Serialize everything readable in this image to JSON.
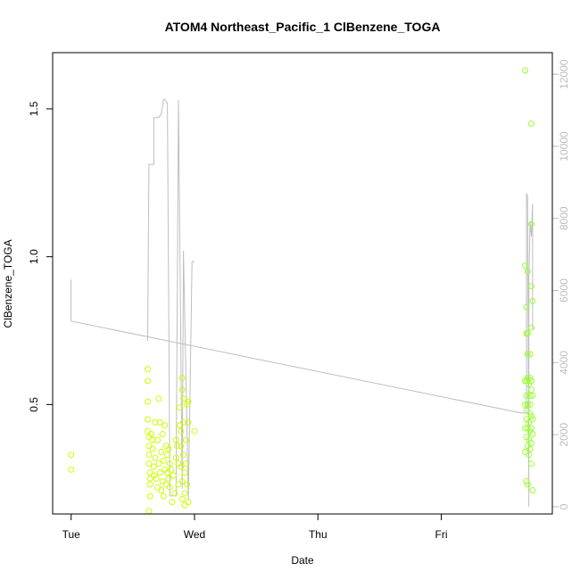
{
  "chart_data": {
    "type": "scatter",
    "title": "ATOM4 Northeast_Pacific_1 ClBenzene_TOGA",
    "xlabel": "Date",
    "ylabel": "ClBenzene_TOGA",
    "x_ticks": [
      {
        "label": "Tue",
        "day": 0
      },
      {
        "label": "Wed",
        "day": 1
      },
      {
        "label": "Thu",
        "day": 2
      },
      {
        "label": "Fri",
        "day": 3
      }
    ],
    "xlim_days": [
      -0.15,
      3.9
    ],
    "ylim": [
      0.13,
      1.69
    ],
    "y_ticks": [
      "0.5",
      "1.0",
      "1.5"
    ],
    "y2lim": [
      -200,
      12600
    ],
    "y2_ticks": [
      "0",
      "2000",
      "4000",
      "6000",
      "8000",
      "10000",
      "12000"
    ],
    "grid": false,
    "colors": {
      "points": [
        "#ccff00",
        "#99ff33"
      ],
      "secondary_line": "#bebebe",
      "secondary_axis": "#bdbdbd"
    },
    "points": [
      {
        "x": 0.0,
        "y": 0.33
      },
      {
        "x": 0.0,
        "y": 0.28
      },
      {
        "x": 0.62,
        "y": 0.62
      },
      {
        "x": 0.62,
        "y": 0.58
      },
      {
        "x": 0.62,
        "y": 0.51
      },
      {
        "x": 0.62,
        "y": 0.45
      },
      {
        "x": 0.62,
        "y": 0.41
      },
      {
        "x": 0.63,
        "y": 0.39
      },
      {
        "x": 0.63,
        "y": 0.36
      },
      {
        "x": 0.63,
        "y": 0.33
      },
      {
        "x": 0.63,
        "y": 0.3
      },
      {
        "x": 0.64,
        "y": 0.27
      },
      {
        "x": 0.64,
        "y": 0.25
      },
      {
        "x": 0.64,
        "y": 0.23
      },
      {
        "x": 0.64,
        "y": 0.19
      },
      {
        "x": 0.63,
        "y": 0.14
      },
      {
        "x": 0.65,
        "y": 0.4
      },
      {
        "x": 0.66,
        "y": 0.38
      },
      {
        "x": 0.66,
        "y": 0.35
      },
      {
        "x": 0.67,
        "y": 0.29
      },
      {
        "x": 0.67,
        "y": 0.26
      },
      {
        "x": 0.68,
        "y": 0.44
      },
      {
        "x": 0.68,
        "y": 0.32
      },
      {
        "x": 0.69,
        "y": 0.25
      },
      {
        "x": 0.7,
        "y": 0.22
      },
      {
        "x": 0.7,
        "y": 0.38
      },
      {
        "x": 0.71,
        "y": 0.3
      },
      {
        "x": 0.71,
        "y": 0.52
      },
      {
        "x": 0.72,
        "y": 0.44
      },
      {
        "x": 0.72,
        "y": 0.27
      },
      {
        "x": 0.73,
        "y": 0.21
      },
      {
        "x": 0.73,
        "y": 0.34
      },
      {
        "x": 0.74,
        "y": 0.4
      },
      {
        "x": 0.74,
        "y": 0.24
      },
      {
        "x": 0.75,
        "y": 0.31
      },
      {
        "x": 0.75,
        "y": 0.19
      },
      {
        "x": 0.76,
        "y": 0.43
      },
      {
        "x": 0.76,
        "y": 0.28
      },
      {
        "x": 0.77,
        "y": 0.36
      },
      {
        "x": 0.77,
        "y": 0.23
      },
      {
        "x": 0.78,
        "y": 0.33
      },
      {
        "x": 0.78,
        "y": 0.27
      },
      {
        "x": 0.79,
        "y": 0.25
      },
      {
        "x": 0.79,
        "y": 0.35
      },
      {
        "x": 0.8,
        "y": 0.3
      },
      {
        "x": 0.8,
        "y": 0.22
      },
      {
        "x": 0.81,
        "y": 0.28
      },
      {
        "x": 0.82,
        "y": 0.17
      },
      {
        "x": 0.83,
        "y": 0.26
      },
      {
        "x": 0.84,
        "y": 0.2
      },
      {
        "x": 0.85,
        "y": 0.38
      },
      {
        "x": 0.85,
        "y": 0.32
      },
      {
        "x": 0.86,
        "y": 0.36
      },
      {
        "x": 0.87,
        "y": 0.3
      },
      {
        "x": 0.87,
        "y": 0.23
      },
      {
        "x": 0.88,
        "y": 0.49
      },
      {
        "x": 0.88,
        "y": 0.43
      },
      {
        "x": 0.89,
        "y": 0.41
      },
      {
        "x": 0.89,
        "y": 0.36
      },
      {
        "x": 0.89,
        "y": 0.29
      },
      {
        "x": 0.9,
        "y": 0.24
      },
      {
        "x": 0.9,
        "y": 0.18
      },
      {
        "x": 0.9,
        "y": 0.59
      },
      {
        "x": 0.9,
        "y": 0.55
      },
      {
        "x": 0.91,
        "y": 0.52
      },
      {
        "x": 0.91,
        "y": 0.44
      },
      {
        "x": 0.91,
        "y": 0.33
      },
      {
        "x": 0.92,
        "y": 0.27
      },
      {
        "x": 0.92,
        "y": 0.2
      },
      {
        "x": 0.92,
        "y": 0.16
      },
      {
        "x": 0.93,
        "y": 0.38
      },
      {
        "x": 0.93,
        "y": 0.3
      },
      {
        "x": 0.94,
        "y": 0.23
      },
      {
        "x": 0.94,
        "y": 0.5
      },
      {
        "x": 0.95,
        "y": 0.44
      },
      {
        "x": 0.95,
        "y": 0.51
      },
      {
        "x": 0.95,
        "y": 0.17
      },
      {
        "x": 1.0,
        "y": 0.41
      },
      {
        "x": 3.68,
        "y": 1.63
      },
      {
        "x": 3.73,
        "y": 1.45
      },
      {
        "x": 3.73,
        "y": 1.11
      },
      {
        "x": 3.68,
        "y": 0.97
      },
      {
        "x": 3.7,
        "y": 0.95
      },
      {
        "x": 3.73,
        "y": 0.9
      },
      {
        "x": 3.69,
        "y": 0.83
      },
      {
        "x": 3.74,
        "y": 0.85
      },
      {
        "x": 3.73,
        "y": 0.76
      },
      {
        "x": 3.7,
        "y": 0.74
      },
      {
        "x": 3.69,
        "y": 0.74
      },
      {
        "x": 3.7,
        "y": 0.67
      },
      {
        "x": 3.72,
        "y": 0.67
      },
      {
        "x": 3.68,
        "y": 0.58
      },
      {
        "x": 3.69,
        "y": 0.58
      },
      {
        "x": 3.7,
        "y": 0.59
      },
      {
        "x": 3.71,
        "y": 0.57
      },
      {
        "x": 3.72,
        "y": 0.59
      },
      {
        "x": 3.73,
        "y": 0.58
      },
      {
        "x": 3.73,
        "y": 0.55
      },
      {
        "x": 3.69,
        "y": 0.53
      },
      {
        "x": 3.72,
        "y": 0.53
      },
      {
        "x": 3.74,
        "y": 0.53
      },
      {
        "x": 3.68,
        "y": 0.5
      },
      {
        "x": 3.7,
        "y": 0.5
      },
      {
        "x": 3.72,
        "y": 0.5
      },
      {
        "x": 3.69,
        "y": 0.48
      },
      {
        "x": 3.72,
        "y": 0.47
      },
      {
        "x": 3.73,
        "y": 0.46
      },
      {
        "x": 3.69,
        "y": 0.45
      },
      {
        "x": 3.71,
        "y": 0.44
      },
      {
        "x": 3.74,
        "y": 0.45
      },
      {
        "x": 3.68,
        "y": 0.42
      },
      {
        "x": 3.7,
        "y": 0.42
      },
      {
        "x": 3.72,
        "y": 0.41
      },
      {
        "x": 3.73,
        "y": 0.42
      },
      {
        "x": 3.74,
        "y": 0.4
      },
      {
        "x": 3.69,
        "y": 0.39
      },
      {
        "x": 3.71,
        "y": 0.38
      },
      {
        "x": 3.73,
        "y": 0.37
      },
      {
        "x": 3.7,
        "y": 0.36
      },
      {
        "x": 3.72,
        "y": 0.35
      },
      {
        "x": 3.68,
        "y": 0.34
      },
      {
        "x": 3.71,
        "y": 0.33
      },
      {
        "x": 3.73,
        "y": 0.3
      },
      {
        "x": 3.69,
        "y": 0.24
      },
      {
        "x": 3.7,
        "y": 0.23
      },
      {
        "x": 3.74,
        "y": 0.21
      }
    ],
    "secondary_line": [
      {
        "x": 0.0,
        "y2": 6300
      },
      {
        "x": 0.0,
        "y2": 5150
      },
      {
        "x": 3.65,
        "y2": 2600
      },
      {
        "x": 3.69,
        "y2": 2600
      },
      {
        "x": 3.69,
        "y2": 8700
      },
      {
        "x": 3.7,
        "y2": 8600
      },
      {
        "x": 3.71,
        "y2": 0
      },
      {
        "x": 3.71,
        "y2": 6300
      },
      {
        "x": 3.72,
        "y2": 7900
      },
      {
        "x": 3.73,
        "y2": 7500
      },
      {
        "x": 3.74,
        "y2": 8400
      },
      {
        "x": 3.74,
        "y2": 4900
      }
    ],
    "secondary_line_2": [
      {
        "x": 0.62,
        "y2": 4600
      },
      {
        "x": 0.63,
        "y2": 9500
      },
      {
        "x": 0.67,
        "y2": 9500
      },
      {
        "x": 0.67,
        "y2": 10800
      },
      {
        "x": 0.71,
        "y2": 10800
      },
      {
        "x": 0.73,
        "y2": 10900
      },
      {
        "x": 0.75,
        "y2": 11300
      },
      {
        "x": 0.76,
        "y2": 11300
      },
      {
        "x": 0.78,
        "y2": 11200
      },
      {
        "x": 0.8,
        "y2": 300
      },
      {
        "x": 0.85,
        "y2": 300
      },
      {
        "x": 0.87,
        "y2": 11300
      },
      {
        "x": 0.9,
        "y2": 500
      },
      {
        "x": 0.91,
        "y2": 7100
      },
      {
        "x": 0.95,
        "y2": 200
      },
      {
        "x": 0.98,
        "y2": 6800
      },
      {
        "x": 1.0,
        "y2": 6800
      }
    ]
  }
}
